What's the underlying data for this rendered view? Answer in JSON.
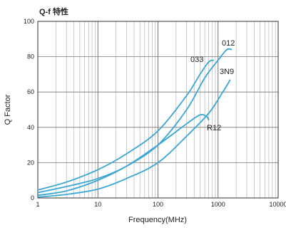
{
  "chart_data": {
    "type": "line",
    "title": "Q-f 特性",
    "xlabel": "Frequency(MHz)",
    "ylabel": "Q Factor",
    "x_scale": "log",
    "xlim": [
      1,
      10000
    ],
    "ylim": [
      0,
      100
    ],
    "x_ticks": [
      1,
      10,
      100,
      1000,
      10000
    ],
    "x_tick_labels": [
      "1",
      "10",
      "100",
      "1000",
      "10000"
    ],
    "y_ticks": [
      0,
      20,
      40,
      60,
      80,
      100
    ],
    "y_tick_labels": [
      "0",
      "20",
      "40",
      "60",
      "80",
      "100"
    ],
    "grid": true,
    "line_color": "#3aa6d6",
    "series": [
      {
        "name": "012",
        "x": [
          1,
          3,
          10,
          30,
          100,
          300,
          600,
          1000,
          1400,
          1700
        ],
        "y": [
          3,
          6.5,
          11,
          18,
          30,
          50,
          68,
          78,
          84,
          84
        ]
      },
      {
        "name": "033",
        "x": [
          1,
          3,
          10,
          30,
          100,
          300,
          500,
          700,
          850
        ],
        "y": [
          4.5,
          9,
          16,
          25,
          38,
          58,
          70,
          77,
          78
        ]
      },
      {
        "name": "3N9",
        "x": [
          1,
          3,
          10,
          30,
          100,
          300,
          700,
          1200,
          1600
        ],
        "y": [
          0.5,
          2,
          5,
          11,
          20,
          35,
          48,
          60,
          67
        ]
      },
      {
        "name": "R12",
        "x": [
          1,
          3,
          10,
          30,
          100,
          300,
          500,
          650,
          700
        ],
        "y": [
          1.5,
          4,
          10,
          18,
          30,
          42,
          47,
          46,
          44
        ]
      }
    ]
  }
}
